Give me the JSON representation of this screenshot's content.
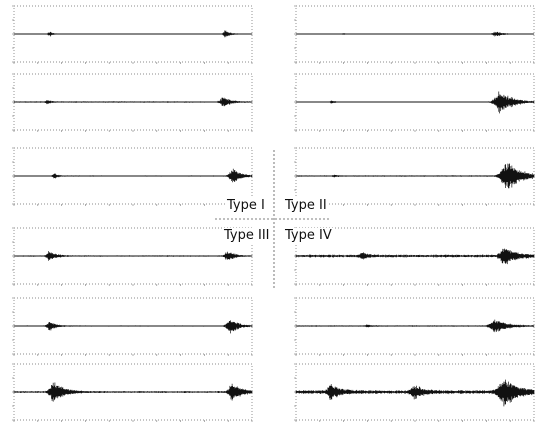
{
  "figure": {
    "quadrant_labels": [
      "Type I",
      "Type II",
      "Type III",
      "Type IV"
    ]
  },
  "chart_data": [
    {
      "type": "line",
      "column": "left",
      "row": 1,
      "quadrant": "Type I",
      "x_tick_count": 11,
      "y_tick_count": 5,
      "events": [
        {
          "t": 0.15,
          "amp": 0.1,
          "width": 0.014
        },
        {
          "t": 0.89,
          "amp": 0.16,
          "width": 0.018
        }
      ],
      "noise": 0.015
    },
    {
      "type": "line",
      "column": "left",
      "row": 2,
      "quadrant": "Type I",
      "x_tick_count": 11,
      "y_tick_count": 5,
      "events": [
        {
          "t": 0.14,
          "amp": 0.08,
          "width": 0.012
        },
        {
          "t": 0.88,
          "amp": 0.22,
          "width": 0.024
        }
      ],
      "noise": 0.03
    },
    {
      "type": "line",
      "column": "left",
      "row": 3,
      "quadrant": "Type I",
      "x_tick_count": 11,
      "y_tick_count": 5,
      "events": [
        {
          "t": 0.17,
          "amp": 0.1,
          "width": 0.014
        },
        {
          "t": 0.92,
          "amp": 0.3,
          "width": 0.03
        }
      ],
      "noise": 0.025
    },
    {
      "type": "line",
      "column": "left",
      "row": 4,
      "quadrant": "Type III",
      "x_tick_count": 11,
      "y_tick_count": 5,
      "events": [
        {
          "t": 0.15,
          "amp": 0.2,
          "width": 0.024
        },
        {
          "t": 0.9,
          "amp": 0.2,
          "width": 0.024
        }
      ],
      "noise": 0.03
    },
    {
      "type": "line",
      "column": "left",
      "row": 5,
      "quadrant": "Type III",
      "x_tick_count": 11,
      "y_tick_count": 5,
      "events": [
        {
          "t": 0.15,
          "amp": 0.2,
          "width": 0.022
        },
        {
          "t": 0.91,
          "amp": 0.3,
          "width": 0.03
        }
      ],
      "noise": 0.025
    },
    {
      "type": "line",
      "column": "left",
      "row": 6,
      "quadrant": "Type III",
      "x_tick_count": 11,
      "y_tick_count": 5,
      "events": [
        {
          "t": 0.17,
          "amp": 0.45,
          "width": 0.035
        },
        {
          "t": 0.92,
          "amp": 0.4,
          "width": 0.03
        }
      ],
      "noise": 0.04
    },
    {
      "type": "line",
      "column": "right",
      "row": 1,
      "quadrant": "Type II",
      "x_tick_count": 11,
      "y_tick_count": 5,
      "events": [
        {
          "t": 0.2,
          "amp": 0.05,
          "width": 0.01
        },
        {
          "t": 0.84,
          "amp": 0.1,
          "width": 0.03
        }
      ],
      "noise": 0.01
    },
    {
      "type": "line",
      "column": "right",
      "row": 2,
      "quadrant": "Type II",
      "x_tick_count": 11,
      "y_tick_count": 5,
      "events": [
        {
          "t": 0.15,
          "amp": 0.06,
          "width": 0.012
        },
        {
          "t": 0.86,
          "amp": 0.45,
          "width": 0.045
        }
      ],
      "noise": 0.02
    },
    {
      "type": "line",
      "column": "right",
      "row": 3,
      "quadrant": "Type II",
      "x_tick_count": 11,
      "y_tick_count": 5,
      "events": [
        {
          "t": 0.16,
          "amp": 0.05,
          "width": 0.012
        },
        {
          "t": 0.89,
          "amp": 0.6,
          "width": 0.05
        }
      ],
      "noise": 0.03
    },
    {
      "type": "line",
      "column": "right",
      "row": 4,
      "quadrant": "Type IV",
      "x_tick_count": 11,
      "y_tick_count": 5,
      "events": [
        {
          "t": 0.28,
          "amp": 0.14,
          "width": 0.02
        },
        {
          "t": 0.88,
          "amp": 0.35,
          "width": 0.04
        }
      ],
      "noise": 0.06
    },
    {
      "type": "line",
      "column": "right",
      "row": 5,
      "quadrant": "Type IV",
      "x_tick_count": 11,
      "y_tick_count": 5,
      "events": [
        {
          "t": 0.3,
          "amp": 0.06,
          "width": 0.014
        },
        {
          "t": 0.84,
          "amp": 0.3,
          "width": 0.04
        }
      ],
      "noise": 0.03
    },
    {
      "type": "line",
      "column": "right",
      "row": 6,
      "quadrant": "Type IV",
      "x_tick_count": 11,
      "y_tick_count": 5,
      "events": [
        {
          "t": 0.15,
          "amp": 0.3,
          "width": 0.03
        },
        {
          "t": 0.5,
          "amp": 0.25,
          "width": 0.03
        },
        {
          "t": 0.88,
          "amp": 0.55,
          "width": 0.05
        }
      ],
      "noise": 0.08
    }
  ]
}
